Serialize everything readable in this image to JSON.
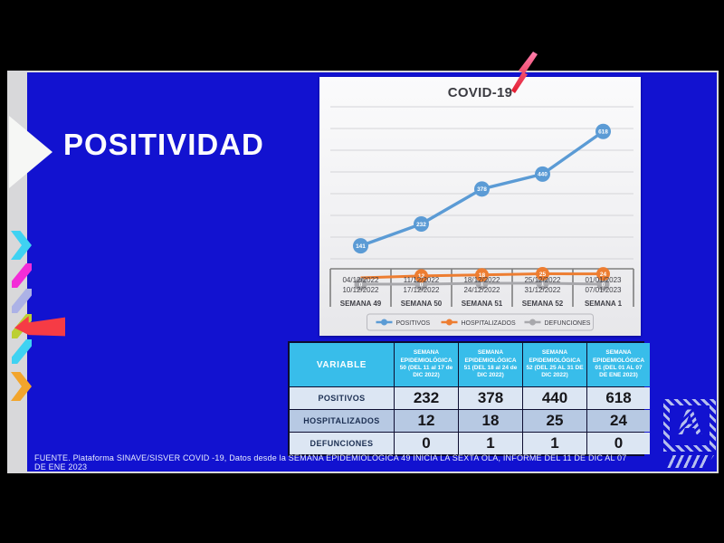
{
  "slide": {
    "title": "POSITIVIDAD",
    "footer": "FUENTE. Plataforma SINAVE/SISVER COVID -19, Datos desde la SEMANA EPIDEMIOLÓGICA 49 INICIA LA SEXTA OLA, INFORME DEL 11 DE DIC AL 07 DE ENE 2023",
    "logo_letter": "A",
    "colors": {
      "slide_blue": "#1212d0",
      "table_header_cyan": "#38bdea",
      "accent_red": "#f63b45",
      "decor_cyan": "#3fd2f2",
      "decor_magenta": "#f32cd7",
      "decor_lavender": "#acb2e6",
      "decor_amber": "#f2a52c"
    }
  },
  "chart_data": {
    "type": "line",
    "title": "COVID-19",
    "categories": [
      {
        "date_from": "04/12/2022",
        "date_to": "10/12/2022",
        "week": "SEMANA 49"
      },
      {
        "date_from": "11/12/2022",
        "date_to": "17/12/2022",
        "week": "SEMANA 50"
      },
      {
        "date_from": "18/12/2022",
        "date_to": "24/12/2022",
        "week": "SEMANA 51"
      },
      {
        "date_from": "25/12/2022",
        "date_to": "31/12/2022",
        "week": "SEMANA 52"
      },
      {
        "date_from": "01/01/2023",
        "date_to": "07/01/2023",
        "week": "SEMANA 1"
      }
    ],
    "series": [
      {
        "name": "POSITIVOS",
        "color": "#5b9bd5",
        "values": [
          141,
          232,
          378,
          440,
          618
        ]
      },
      {
        "name": "HOSPITALIZADOS",
        "color": "#ed7d31",
        "values": [
          0,
          12,
          18,
          25,
          24
        ]
      },
      {
        "name": "DEFUNCIONES",
        "color": "#a8a8ac",
        "values": [
          0,
          0,
          1,
          1,
          0
        ]
      }
    ],
    "ylim": [
      0,
      650
    ],
    "grid": true,
    "legend_position": "bottom"
  },
  "table": {
    "header": [
      "VARIABLE",
      "SEMANA EPIDEMIOLÓGICA 50 (DEL 11 al 17 de DIC 2022)",
      "SEMANA EPIDEMIOLÓGICA 51 (DEL 18 al 24 de DIC 2022)",
      "SEMANA EPIDEMIOLÓGICA 52 (DEL 25 AL 31 DE DIC 2022)",
      "SEMANA EPIDEMIOLÓGICA 01 (DEL 01 AL 07 DE ENE 2023)"
    ],
    "rows": [
      {
        "label": "POSITIVOS",
        "values": [
          "232",
          "378",
          "440",
          "618"
        ]
      },
      {
        "label": "HOSPITALIZADOS",
        "values": [
          "12",
          "18",
          "25",
          "24"
        ]
      },
      {
        "label": "DEFUNCIONES",
        "values": [
          "0",
          "1",
          "1",
          "0"
        ]
      }
    ]
  }
}
